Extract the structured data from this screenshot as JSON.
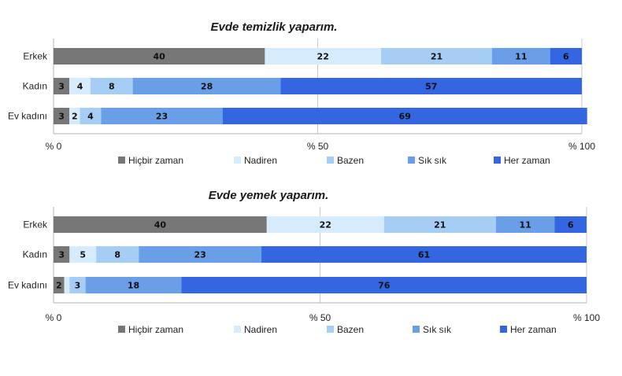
{
  "chart_data": [
    {
      "type": "bar",
      "stacked": true,
      "orientation": "horizontal",
      "title": "Evde temizlik yaparım.",
      "categories": [
        "Erkek",
        "Kadın",
        "Ev kadını"
      ],
      "series": [
        {
          "name": "Hiçbir zaman",
          "values": [
            40,
            3,
            3
          ],
          "color": "#777777"
        },
        {
          "name": "Nadiren",
          "values": [
            22,
            4,
            2
          ],
          "color": "#d6ebfb"
        },
        {
          "name": "Bazen",
          "values": [
            21,
            8,
            4
          ],
          "color": "#a6cdf4"
        },
        {
          "name": "Sık sık",
          "values": [
            11,
            28,
            23
          ],
          "color": "#6b9ee8"
        },
        {
          "name": "Her zaman",
          "values": [
            6,
            57,
            69
          ],
          "color": "#3366e0"
        }
      ],
      "xlim": [
        0,
        100
      ],
      "xticks": [
        "% 0",
        "% 50",
        "% 100"
      ],
      "grid": true,
      "legend": "bottom"
    },
    {
      "type": "bar",
      "stacked": true,
      "orientation": "horizontal",
      "title": "Evde yemek yaparım.",
      "categories": [
        "Erkek",
        "Kadın",
        "Ev kadını"
      ],
      "series": [
        {
          "name": "Hiçbir zaman",
          "values": [
            40,
            3,
            2
          ],
          "color": "#777777"
        },
        {
          "name": "Nadiren",
          "values": [
            22,
            5,
            1
          ],
          "color": "#d6ebfb"
        },
        {
          "name": "Bazen",
          "values": [
            21,
            8,
            3
          ],
          "color": "#a6cdf4"
        },
        {
          "name": "Sık sık",
          "values": [
            11,
            23,
            18
          ],
          "color": "#6b9ee8"
        },
        {
          "name": "Her zaman",
          "values": [
            6,
            61,
            76
          ],
          "color": "#3366e0"
        }
      ],
      "hidden_labels": [
        [
          2,
          1
        ]
      ],
      "xlim": [
        0,
        100
      ],
      "xticks": [
        "% 0",
        "% 50",
        "% 100"
      ],
      "grid": true,
      "legend": "bottom"
    }
  ]
}
